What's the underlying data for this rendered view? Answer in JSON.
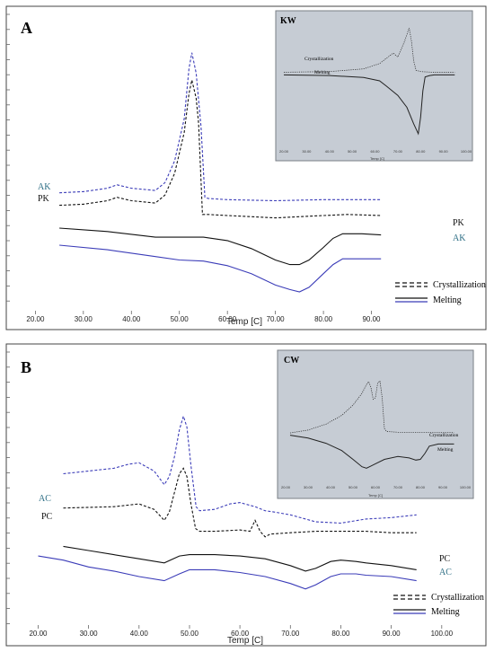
{
  "colors": {
    "black": "#111111",
    "blue": "#3b3cb8",
    "teal_label": "#2f6f86",
    "inset_bg": "#c6ccd4",
    "inset_border": "#7a7f86"
  },
  "chart_data": [
    {
      "type": "line",
      "panel_label": "A",
      "xlabel": "Temp [C]",
      "xlim": [
        16,
        100
      ],
      "x_ticks": [
        "20.00",
        "30.00",
        "40.00",
        "50.00",
        "60.00",
        "70.00",
        "80.00",
        "90.00"
      ],
      "legend": {
        "placement": "bottom-right",
        "items": [
          {
            "label": "Crystallization",
            "style": "dashed"
          },
          {
            "label": "Melting",
            "style": "solid"
          }
        ]
      },
      "series": [
        {
          "name": "AK",
          "kind": "crystallization",
          "color": "#3b3cb8",
          "x": [
            25,
            30,
            35,
            37,
            40,
            45,
            47,
            49,
            51,
            52,
            52.6,
            53.5,
            54.5,
            55.3,
            56,
            60,
            70,
            80,
            85,
            92
          ],
          "y": [
            -3.3,
            -3.2,
            -2.9,
            -2.6,
            -2.9,
            -3.1,
            -2.4,
            -0.5,
            3.2,
            7.6,
            9.0,
            7.2,
            2.5,
            -3.7,
            -3.8,
            -3.9,
            -4.0,
            -3.9,
            -3.9,
            -3.9
          ]
        },
        {
          "name": "PK",
          "kind": "crystallization",
          "color": "#111111",
          "x": [
            25,
            30,
            35,
            37,
            40,
            45,
            47,
            49,
            51,
            52,
            52.6,
            53.5,
            54,
            54.8,
            56,
            60,
            70,
            80,
            85,
            92
          ],
          "y": [
            -4.4,
            -4.3,
            -4.0,
            -3.7,
            -4.0,
            -4.2,
            -3.5,
            -1.6,
            2.0,
            5.4,
            6.6,
            5.0,
            2.8,
            -5.2,
            -5.2,
            -5.3,
            -5.5,
            -5.3,
            -5.2,
            -5.3
          ]
        },
        {
          "name": "PK",
          "kind": "melting",
          "color": "#111111",
          "x": [
            25,
            35,
            45,
            55,
            60,
            65,
            70,
            73,
            75,
            77,
            80,
            82,
            84,
            88,
            92
          ],
          "y": [
            -6.4,
            -6.7,
            -7.2,
            -7.2,
            -7.5,
            -8.2,
            -9.2,
            -9.6,
            -9.6,
            -9.2,
            -8.1,
            -7.3,
            -6.9,
            -6.9,
            -7.0
          ]
        },
        {
          "name": "AK",
          "kind": "melting",
          "color": "#3b3cb8",
          "x": [
            25,
            35,
            45,
            50,
            55,
            60,
            65,
            70,
            73,
            75,
            77,
            80,
            82,
            84,
            88,
            92
          ],
          "y": [
            -7.9,
            -8.3,
            -8.9,
            -9.2,
            -9.3,
            -9.7,
            -10.4,
            -11.4,
            -11.8,
            -12.0,
            -11.6,
            -10.4,
            -9.6,
            -9.1,
            -9.1,
            -9.1
          ]
        }
      ],
      "inset": {
        "title": "KW",
        "x_ticks": [
          "20.00",
          "30.00",
          "40.00",
          "50.00",
          "60.00",
          "70.00",
          "80.00",
          "90.00",
          "100.00"
        ],
        "xlabel": "Temp [C]",
        "series_labels": [
          "Crystallization",
          "Melting"
        ],
        "series": [
          {
            "name": "Crystallization",
            "style": "dotted",
            "x": [
              20,
              40,
              55,
              62,
              65,
              68,
              70,
              71,
              73,
              75,
              76,
              77,
              78,
              80,
              85,
              95
            ],
            "y": [
              0.3,
              0.4,
              0.8,
              1.6,
              2.4,
              3.2,
              2.6,
              3.4,
              5.0,
              7.0,
              5.0,
              2.0,
              0.6,
              0.4,
              0.3,
              0.3
            ]
          },
          {
            "name": "Melting",
            "style": "solid",
            "x": [
              20,
              40,
              55,
              62,
              65,
              70,
              74,
              77,
              79,
              80,
              81,
              82,
              84,
              86,
              90,
              95
            ],
            "y": [
              -0.1,
              -0.2,
              -0.5,
              -1.0,
              -1.8,
              -3.2,
              -5.0,
              -7.5,
              -9.0,
              -6.5,
              -2.5,
              -0.4,
              -0.2,
              -0.1,
              -0.1,
              -0.1
            ]
          }
        ]
      }
    },
    {
      "type": "line",
      "panel_label": "B",
      "xlabel": "Temp [C]",
      "xlim": [
        16,
        102
      ],
      "x_ticks": [
        "20.00",
        "30.00",
        "40.00",
        "50.00",
        "60.00",
        "70.00",
        "80.00",
        "90.00",
        "100.00"
      ],
      "legend": {
        "placement": "bottom-right",
        "items": [
          {
            "label": "Crystallization",
            "style": "dashed"
          },
          {
            "label": "Melting",
            "style": "solid"
          }
        ]
      },
      "series": [
        {
          "name": "AC",
          "kind": "crystallization",
          "color": "#3b3cb8",
          "x": [
            25,
            30,
            35,
            38,
            40,
            43,
            45,
            46,
            47,
            48,
            48.8,
            49.5,
            50.3,
            51.3,
            52,
            55,
            58,
            60,
            63,
            65,
            67,
            70,
            75,
            80,
            85,
            90,
            95
          ],
          "y": [
            -1.4,
            -1.2,
            -1.0,
            -0.7,
            -0.6,
            -1.2,
            -2.2,
            -1.6,
            -0.2,
            1.8,
            2.8,
            2.0,
            -0.8,
            -3.8,
            -4.1,
            -4.0,
            -3.6,
            -3.5,
            -3.8,
            -4.1,
            -4.2,
            -4.4,
            -4.9,
            -5.0,
            -4.7,
            -4.6,
            -4.4
          ]
        },
        {
          "name": "PC",
          "kind": "crystallization",
          "color": "#111111",
          "x": [
            25,
            35,
            40,
            43,
            45,
            46,
            47,
            48,
            48.8,
            49.5,
            50.3,
            51.2,
            52,
            55,
            60,
            62,
            63,
            64,
            65,
            66,
            70,
            75,
            80,
            85,
            90,
            95
          ],
          "y": [
            -3.9,
            -3.8,
            -3.6,
            -4.0,
            -4.8,
            -4.2,
            -2.8,
            -1.4,
            -1.0,
            -1.6,
            -3.6,
            -5.4,
            -5.6,
            -5.6,
            -5.5,
            -5.6,
            -4.8,
            -5.6,
            -6.0,
            -5.8,
            -5.7,
            -5.6,
            -5.6,
            -5.6,
            -5.7,
            -5.7
          ]
        },
        {
          "name": "PC",
          "kind": "melting",
          "color": "#111111",
          "x": [
            25,
            30,
            35,
            40,
            45,
            48,
            50,
            52,
            55,
            60,
            65,
            70,
            73,
            75,
            78,
            80,
            83,
            85,
            90,
            95
          ],
          "y": [
            -6.7,
            -7.0,
            -7.3,
            -7.6,
            -7.9,
            -7.4,
            -7.3,
            -7.3,
            -7.3,
            -7.4,
            -7.6,
            -8.1,
            -8.5,
            -8.3,
            -7.8,
            -7.7,
            -7.8,
            -7.9,
            -8.1,
            -8.4
          ]
        },
        {
          "name": "AC",
          "kind": "melting",
          "color": "#3b3cb8",
          "x": [
            20,
            25,
            30,
            35,
            40,
            45,
            48,
            50,
            55,
            60,
            65,
            70,
            73,
            75,
            78,
            80,
            83,
            85,
            90,
            95
          ],
          "y": [
            -7.4,
            -7.7,
            -8.2,
            -8.5,
            -8.9,
            -9.2,
            -8.7,
            -8.4,
            -8.4,
            -8.6,
            -8.9,
            -9.4,
            -9.8,
            -9.5,
            -8.9,
            -8.7,
            -8.7,
            -8.8,
            -8.9,
            -9.2
          ]
        }
      ],
      "inset": {
        "title": "CW",
        "x_ticks": [
          "20.00",
          "30.00",
          "40.00",
          "50.00",
          "60.00",
          "70.00",
          "80.00",
          "90.00",
          "100.00"
        ],
        "xlabel": "Temp [C]",
        "series_labels": [
          "Crystallization",
          "Melting"
        ],
        "series": [
          {
            "name": "Crystallization",
            "style": "dotted",
            "x": [
              22,
              30,
              38,
              45,
              50,
              54,
              56,
              57,
              58,
              59,
              60,
              61,
              62,
              63,
              64,
              65,
              70,
              80,
              95
            ],
            "y": [
              1.2,
              1.6,
              2.4,
              3.6,
              5.0,
              6.6,
              7.8,
              8.2,
              7.4,
              5.8,
              6.0,
              8.0,
              8.3,
              6.0,
              1.8,
              1.4,
              1.3,
              1.3,
              1.3
            ]
          },
          {
            "name": "Melting",
            "style": "solid",
            "x": [
              22,
              30,
              38,
              45,
              50,
              54,
              56,
              58,
              60,
              64,
              70,
              75,
              78,
              80,
              82,
              84,
              88,
              95
            ],
            "y": [
              0.9,
              0.5,
              -0.2,
              -1.2,
              -2.4,
              -3.4,
              -3.6,
              -3.3,
              -3.0,
              -2.4,
              -2.0,
              -2.2,
              -2.5,
              -2.4,
              -1.6,
              -0.6,
              -0.3,
              -0.3
            ]
          }
        ]
      }
    }
  ]
}
